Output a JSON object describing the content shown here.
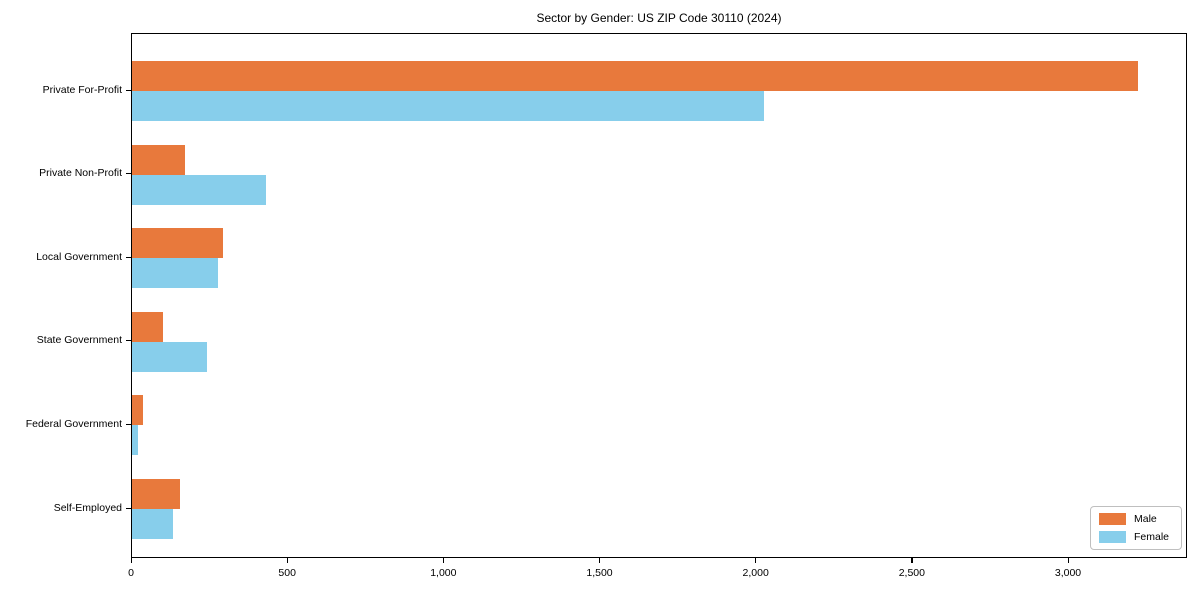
{
  "chart_data": {
    "type": "bar",
    "orientation": "horizontal",
    "title": "Sector by Gender: US ZIP Code 30110 (2024)",
    "xlabel": "",
    "ylabel": "",
    "categories": [
      "Private For-Profit",
      "Private Non-Profit",
      "Local Government",
      "State Government",
      "Federal Government",
      "Self-Employed"
    ],
    "series": [
      {
        "name": "Male",
        "color": "#e8793c",
        "values": [
          3220,
          170,
          290,
          100,
          35,
          155
        ]
      },
      {
        "name": "Female",
        "color": "#87ceeb",
        "values": [
          2025,
          430,
          275,
          240,
          18,
          130
        ]
      }
    ],
    "xlim": [
      0,
      3381
    ],
    "xticks": [
      {
        "label": "0",
        "value": 0
      },
      {
        "label": "500",
        "value": 500
      },
      {
        "label": "1,000",
        "value": 1000
      },
      {
        "label": "1,500",
        "value": 1500
      },
      {
        "label": "2,000",
        "value": 2000
      },
      {
        "label": "2,500",
        "value": 2500
      },
      {
        "label": "3,000",
        "value": 3000
      }
    ],
    "grid": false,
    "legend_position": "lower right"
  },
  "legend": {
    "entries": [
      {
        "label": "Male",
        "color": "#e8793c"
      },
      {
        "label": "Female",
        "color": "#87ceeb"
      }
    ]
  }
}
